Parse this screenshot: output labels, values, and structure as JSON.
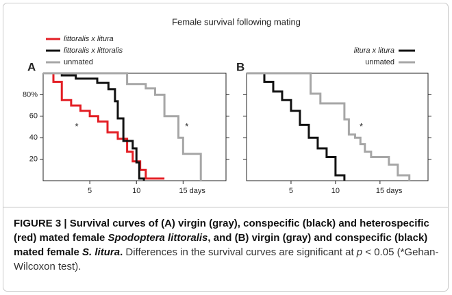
{
  "figure_title": "Female survival following mating",
  "chart_data": [
    {
      "type": "line",
      "step": true,
      "panel": "A",
      "xlim": [
        0,
        19.6
      ],
      "ylim": [
        0,
        100
      ],
      "xticks": [
        5,
        10,
        {
          "value": 15,
          "label": "15 days"
        }
      ],
      "yticks": [
        20,
        40,
        60,
        {
          "value": 80,
          "label": "80%"
        }
      ],
      "show_ytick_labels": true,
      "legend": "upper-left",
      "series": [
        {
          "name": "littoralis x litura",
          "color": "#e31e24",
          "x": [
            0,
            1.1,
            2,
            3,
            4,
            5,
            5.9,
            6.9,
            8,
            9,
            9.6,
            10.4,
            11,
            13
          ],
          "values": [
            100,
            92,
            75,
            70,
            65,
            60,
            55,
            45,
            39,
            27,
            18,
            10,
            2,
            2
          ]
        },
        {
          "name": "littoralis x littoralis",
          "color": "#111111",
          "x": [
            0,
            2,
            3.5,
            5.8,
            7,
            7.7,
            8,
            8.6,
            9.6,
            10,
            10.3,
            10.8
          ],
          "values": [
            100,
            98,
            95,
            91,
            85,
            74,
            58,
            37,
            30,
            17,
            2,
            0
          ]
        },
        {
          "name": "unmated",
          "color": "#a6a6a6",
          "x": [
            0,
            9,
            11,
            12,
            13,
            14.5,
            15,
            16.9
          ],
          "values": [
            100,
            90,
            86,
            80,
            60,
            40,
            25,
            0
          ]
        }
      ],
      "annotations": [
        {
          "text": "*",
          "x": 3.6,
          "y": 50
        },
        {
          "text": "*",
          "x": 15.4,
          "y": 50
        }
      ]
    },
    {
      "type": "line",
      "step": true,
      "panel": "B",
      "xlim": [
        0,
        20.4
      ],
      "ylim": [
        0,
        100
      ],
      "xticks": [
        5,
        10,
        {
          "value": 15,
          "label": "15 days"
        }
      ],
      "yticks": [
        20,
        40,
        60,
        80
      ],
      "show_ytick_labels": false,
      "legend": "upper-right",
      "series": [
        {
          "name": "litura x litura",
          "color": "#111111",
          "x": [
            0,
            2,
            3,
            4,
            5,
            6,
            7,
            8,
            9,
            10,
            11
          ],
          "values": [
            100,
            92,
            83,
            75,
            65,
            52,
            40,
            30,
            22,
            5,
            0
          ]
        },
        {
          "name": "unmated",
          "color": "#a6a6a6",
          "x": [
            0,
            7.2,
            8.3,
            11,
            11.5,
            12.2,
            12.8,
            13.3,
            14,
            16,
            17,
            18.3
          ],
          "values": [
            100,
            81,
            72,
            57,
            43,
            40,
            34,
            27,
            22,
            15,
            5,
            0
          ]
        }
      ],
      "annotations": [
        {
          "text": "*",
          "x": 12.9,
          "y": 50
        }
      ]
    }
  ],
  "caption": {
    "parts": [
      {
        "text": "FIGURE 3 | Survival curves of (A) virgin (gray), conspecific (black) and heterospecific (red) mated female ",
        "bold": true,
        "italic": false
      },
      {
        "text": "Spodoptera littoralis",
        "bold": true,
        "italic": true
      },
      {
        "text": ", and (B) virgin (gray) and conspecific (black) mated female ",
        "bold": true,
        "italic": false
      },
      {
        "text": "S. litura",
        "bold": true,
        "italic": true
      },
      {
        "text": ".",
        "bold": true,
        "italic": false
      },
      {
        "text": " Differences in the survival curves are significant at ",
        "bold": false,
        "italic": false
      },
      {
        "text": "p",
        "bold": false,
        "italic": true
      },
      {
        "text": " < 0.05 (*Gehan-Wilcoxon test).",
        "bold": false,
        "italic": false
      }
    ]
  }
}
